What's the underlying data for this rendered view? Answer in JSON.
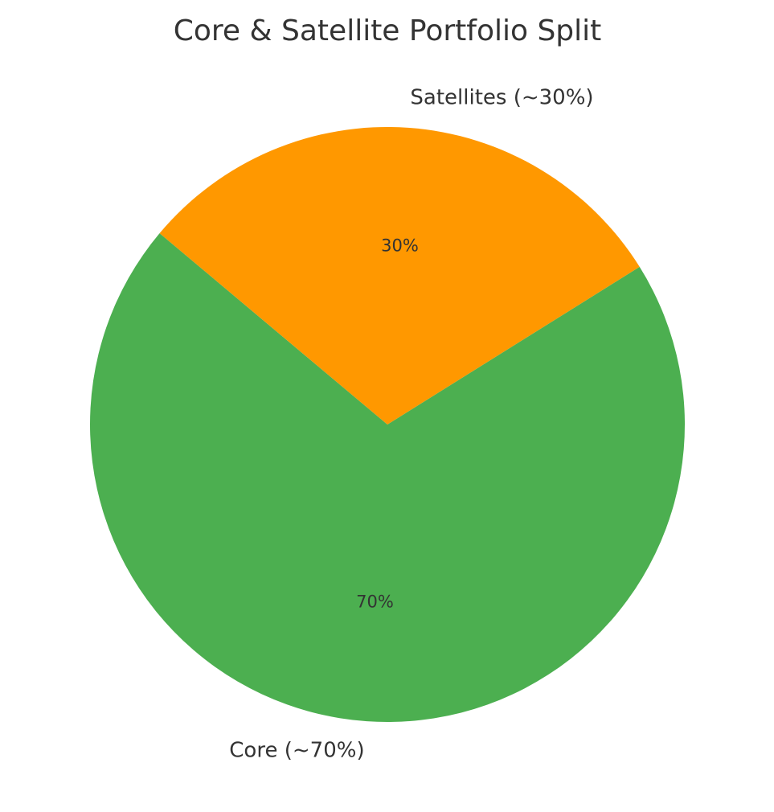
{
  "chart_data": {
    "type": "pie",
    "title": "Core & Satellite Portfolio Split",
    "start_angle_deg": 140,
    "counterclock": true,
    "slices": [
      {
        "label": "Core (~70%)",
        "value": 70,
        "pct_label": "70%",
        "color": "#4CAF50"
      },
      {
        "label": "Satellites (~30%)",
        "value": 30,
        "pct_label": "30%",
        "color": "#FF9800"
      }
    ]
  }
}
